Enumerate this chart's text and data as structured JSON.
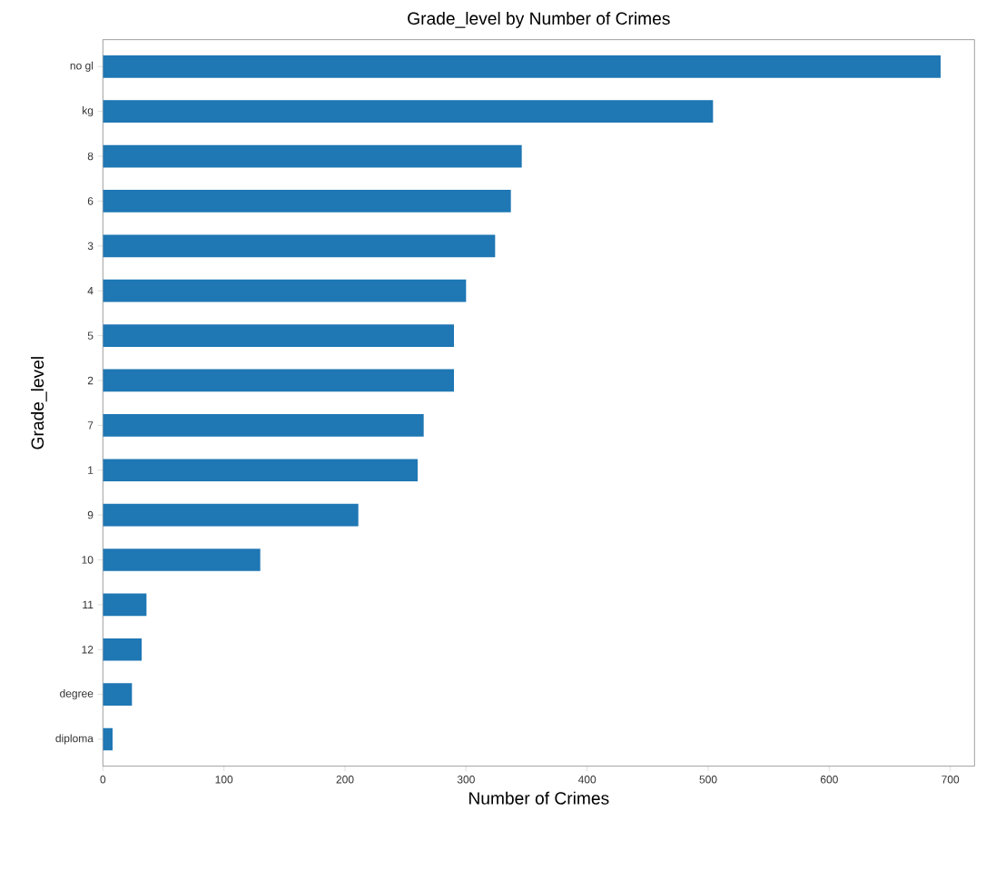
{
  "chart_data": {
    "type": "bar",
    "orientation": "horizontal",
    "title": "Grade_level by Number of Crimes",
    "xlabel": "Number of Crimes",
    "ylabel": "Grade_level",
    "categories": [
      "no gl",
      "kg",
      "8",
      "6",
      "3",
      "4",
      "5",
      "2",
      "7",
      "1",
      "9",
      "10",
      "11",
      "12",
      "degree",
      "diploma"
    ],
    "values": [
      692,
      504,
      346,
      337,
      324,
      300,
      290,
      290,
      265,
      260,
      211,
      130,
      36,
      32,
      24,
      8
    ],
    "color": "#1f77b4",
    "xlim": [
      0,
      720
    ],
    "xticks": [
      0,
      100,
      200,
      300,
      400,
      500,
      600,
      700
    ],
    "grid": false
  }
}
